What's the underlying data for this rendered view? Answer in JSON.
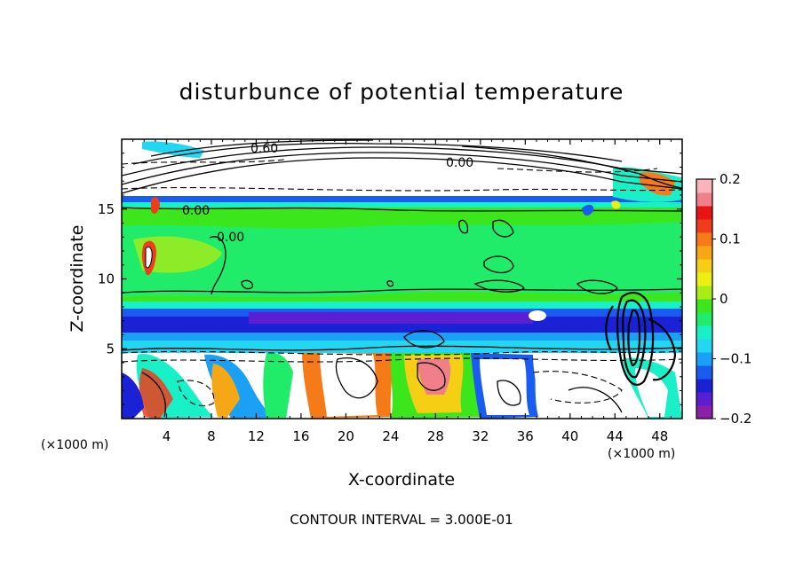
{
  "chart_data": {
    "type": "heatmap",
    "title": "disturbunce of potential temperature",
    "xlabel": "X-coordinate",
    "ylabel": "Z-coordinate",
    "x_unit": "(×1000 m)",
    "y_unit": "(×1000 m)",
    "footer": "CONTOUR INTERVAL = 3.000E-01",
    "xlim": [
      0,
      50
    ],
    "ylim": [
      0,
      20
    ],
    "x_ticks": [
      4,
      8,
      12,
      16,
      20,
      24,
      28,
      32,
      36,
      40,
      44,
      48
    ],
    "y_ticks": [
      5,
      10,
      15
    ],
    "colorbar": {
      "range": [
        -0.2,
        0.2
      ],
      "tick_values": [
        0.2,
        0.1,
        0,
        -0.1,
        -0.2
      ],
      "tick_labels": [
        "0.2",
        "0.1",
        "0",
        "−0.1",
        "−0.2"
      ],
      "colors": [
        "#8b1fa8",
        "#5a1fd0",
        "#1b22d6",
        "#1a5cf0",
        "#1aa0f5",
        "#22d7f2",
        "#19f0c8",
        "#20ec6a",
        "#3be61c",
        "#a9ec16",
        "#eaf015",
        "#f5cf14",
        "#f6a715",
        "#f57a18",
        "#ef3c1a",
        "#e81414",
        "#f07f8a",
        "#f8b4b8"
      ]
    },
    "contour_labels": [
      "0.60",
      "0.00",
      "0.00",
      "0.00"
    ],
    "contour_interval": 0.3,
    "layers": [
      {
        "z": [
          0,
          4.8
        ],
        "value": "mixed ±0.2 (convective cells)"
      },
      {
        "z": [
          4.8,
          6.3
        ],
        "value": -0.08
      },
      {
        "z": [
          6.3,
          7.2
        ],
        "value": -0.14
      },
      {
        "z": [
          7.2,
          8.5
        ],
        "value": -0.17
      },
      {
        "z": [
          8.5,
          15.0
        ],
        "value": 0.01
      },
      {
        "z": [
          15.0,
          15.5
        ],
        "value": -0.1
      },
      {
        "z": [
          15.5,
          20
        ],
        "value": "mixed, contours 0.6 and above"
      }
    ]
  }
}
